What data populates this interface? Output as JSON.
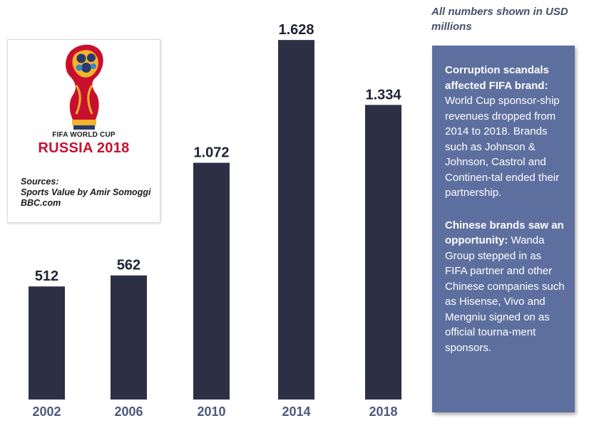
{
  "chart_data": {
    "type": "bar",
    "categories": [
      "2002",
      "2006",
      "2010",
      "2014",
      "2018"
    ],
    "values": [
      512,
      562,
      1072,
      1628,
      1334
    ],
    "value_labels": [
      "512",
      "562",
      "1.072",
      "1.628",
      "1.334"
    ],
    "title": "",
    "xlabel": "",
    "ylabel": "",
    "ylim": [
      0,
      1700
    ],
    "grid": false,
    "bar_color": "#2d3045",
    "year_label_color": "#4a5a7e"
  },
  "logo": {
    "line1": "FIFA WORLD CUP",
    "line2": "RUSSIA 2018"
  },
  "sources": {
    "heading": "Sources:",
    "line1": "Sports Value by Amir Somoggi",
    "line2": "BBC.com"
  },
  "note": "All numbers shown in USD millions",
  "panel": {
    "color": "#5d6f9e",
    "p1_heading": "Corruption scandals affected FIFA brand:",
    "p1_body": "World Cup sponsor-ship revenues dropped from 2014 to 2018. Brands such as Johnson & Johnson, Castrol and Continen-tal ended their partnership.",
    "p2_heading": "Chinese brands saw an opportunity:",
    "p2_body": "Wanda Group stepped in as FIFA partner and other Chinese companies such as Hisense, Vivo and Mengniu signed on as official tourna-ment sponsors."
  }
}
